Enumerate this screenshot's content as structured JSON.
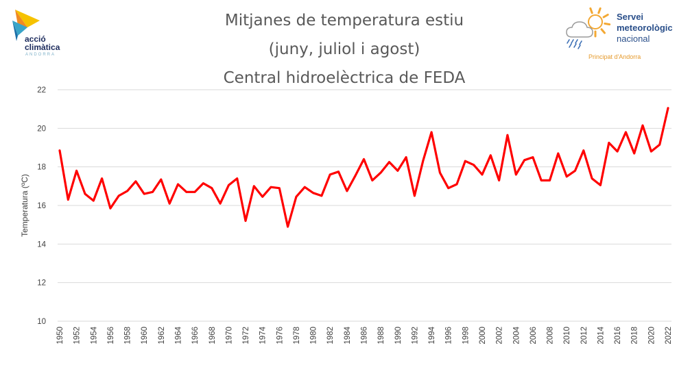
{
  "logos": {
    "left": {
      "line1": "acció",
      "line2": "climàtica",
      "sub": "ANDORRA",
      "colors": [
        "#f6c200",
        "#f08a24",
        "#3aa5c8",
        "#1b6fa8"
      ]
    },
    "right": {
      "line1": "Servei",
      "line2": "meteorològic",
      "line3": "nacional",
      "sub": "Principat d'Andorra",
      "sun_color": "#f3a833",
      "cloud_color": "#9a9a9a",
      "rain_color": "#3b6fb5"
    }
  },
  "chart_data": {
    "type": "line",
    "title": [
      "Mitjanes de temperatura estiu",
      "(juny, juliol i agost)",
      "Central hidroelèctrica de FEDA"
    ],
    "ylabel": "Temperatura (ºC)",
    "xlabel": "",
    "ylim": [
      10,
      22
    ],
    "yticks": [
      10,
      12,
      14,
      16,
      18,
      20,
      22
    ],
    "grid": true,
    "legend": "none",
    "line_color": "#ff0000",
    "x": [
      1950,
      1951,
      1952,
      1953,
      1954,
      1955,
      1956,
      1957,
      1958,
      1959,
      1960,
      1961,
      1962,
      1963,
      1964,
      1965,
      1966,
      1967,
      1968,
      1969,
      1970,
      1971,
      1972,
      1973,
      1974,
      1975,
      1976,
      1977,
      1978,
      1979,
      1980,
      1981,
      1982,
      1983,
      1984,
      1985,
      1986,
      1987,
      1988,
      1989,
      1990,
      1991,
      1992,
      1993,
      1994,
      1995,
      1996,
      1997,
      1998,
      1999,
      2000,
      2001,
      2002,
      2003,
      2004,
      2005,
      2006,
      2007,
      2008,
      2009,
      2010,
      2011,
      2012,
      2013,
      2014,
      2015,
      2016,
      2017,
      2018,
      2019,
      2020,
      2021,
      2022
    ],
    "xtick_labels": [
      "1950",
      "1952",
      "1954",
      "1956",
      "1958",
      "1960",
      "1962",
      "1964",
      "1966",
      "1968",
      "1970",
      "1972",
      "1974",
      "1976",
      "1978",
      "1980",
      "1982",
      "1984",
      "1986",
      "1988",
      "1990",
      "1992",
      "1994",
      "1996",
      "1998",
      "2000",
      "2002",
      "2004",
      "2006",
      "2008",
      "2010",
      "2012",
      "2014",
      "2016",
      "2018",
      "2020",
      "2022"
    ],
    "values": [
      18.85,
      16.3,
      17.8,
      16.6,
      16.25,
      17.4,
      15.85,
      16.5,
      16.75,
      17.25,
      16.6,
      16.7,
      17.35,
      16.1,
      17.1,
      16.7,
      16.7,
      17.15,
      16.9,
      16.1,
      17.05,
      17.4,
      15.2,
      17.0,
      16.45,
      16.95,
      16.9,
      14.9,
      16.45,
      16.95,
      16.65,
      16.5,
      17.6,
      17.75,
      16.75,
      17.55,
      18.4,
      17.3,
      17.7,
      18.25,
      17.8,
      18.5,
      16.5,
      18.3,
      19.8,
      17.7,
      16.9,
      17.1,
      18.3,
      18.1,
      17.6,
      18.6,
      17.3,
      19.65,
      17.6,
      18.35,
      18.5,
      17.3,
      17.3,
      18.7,
      17.5,
      17.8,
      18.85,
      17.4,
      17.05,
      19.25,
      18.8,
      19.8,
      18.7,
      20.15,
      18.8,
      19.15,
      21.05
    ]
  }
}
